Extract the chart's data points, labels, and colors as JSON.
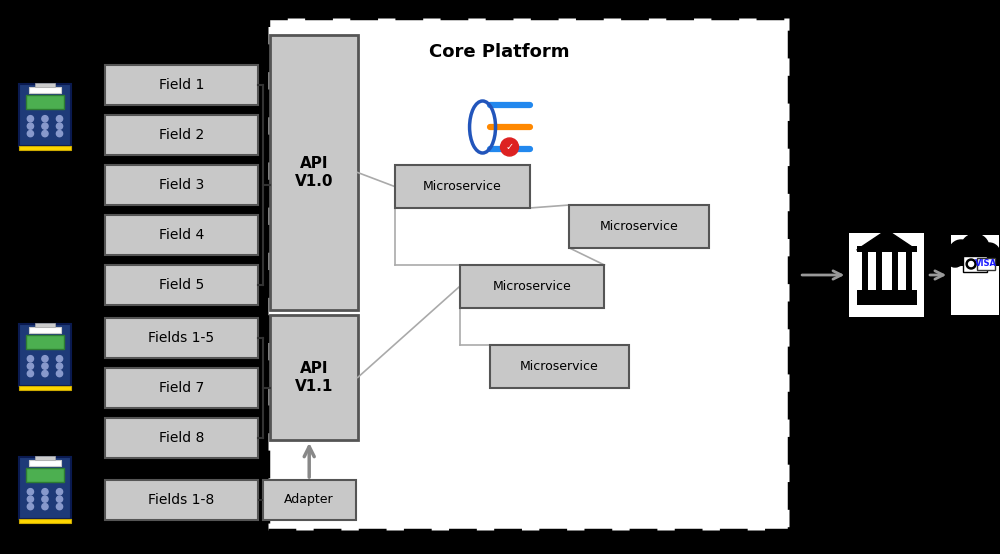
{
  "bg_color": "#000000",
  "white": "#ffffff",
  "light_gray": "#c8c8c8",
  "dark_gray": "#888888",
  "edge_gray": "#555555",
  "core_platform_title": "Core Platform",
  "api_v10_label": "API\nV1.0",
  "api_v11_label": "API\nV1.1",
  "adapter_label": "Adapter",
  "field_boxes_top": [
    "Field 1",
    "Field 2",
    "Field 3",
    "Field 4",
    "Field 5"
  ],
  "field_boxes_mid": [
    "Fields 1-5",
    "Field 7",
    "Field 8"
  ],
  "field_boxes_bot": [
    "Fields 1-8"
  ],
  "ms_label": "Microservice",
  "arrow_color": "#999999",
  "line_color": "#aaaaaa",
  "bracket_color": "#333333"
}
